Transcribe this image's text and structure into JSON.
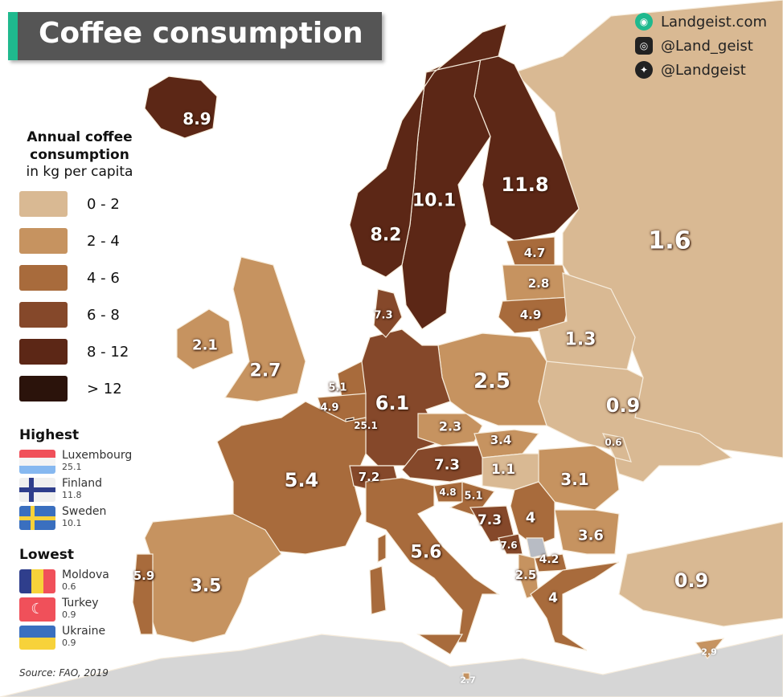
{
  "title": "Coffee consumption",
  "social": [
    {
      "icon": "globe-icon",
      "text": "Landgeist.com"
    },
    {
      "icon": "instagram-icon",
      "text": "@Land_geist"
    },
    {
      "icon": "twitter-icon",
      "text": "@Landgeist"
    }
  ],
  "legend": {
    "title_line1": "Annual coffee",
    "title_line2": "consumption",
    "subtitle": "in kg per capita",
    "bins": [
      {
        "label": "0  -  2",
        "color": "#d9b993"
      },
      {
        "label": "2  -  4",
        "color": "#c69360"
      },
      {
        "label": "4  -  6",
        "color": "#a86b3c"
      },
      {
        "label": "6  -  8",
        "color": "#85482a"
      },
      {
        "label": "8  -  12",
        "color": "#5c2716"
      },
      {
        "label": "> 12",
        "color": "#2b130b"
      }
    ]
  },
  "highest": {
    "heading": "Highest",
    "items": [
      {
        "country": "Luxembourg",
        "value": "25.1"
      },
      {
        "country": "Finland",
        "value": "11.8"
      },
      {
        "country": "Sweden",
        "value": "10.1"
      }
    ]
  },
  "lowest": {
    "heading": "Lowest",
    "items": [
      {
        "country": "Moldova",
        "value": "0.6"
      },
      {
        "country": "Turkey",
        "value": "0.9"
      },
      {
        "country": "Ukraine",
        "value": "0.9"
      }
    ]
  },
  "source": "Source: FAO, 2019",
  "countries": [
    {
      "id": "russia",
      "value": "1.6"
    },
    {
      "id": "finland",
      "value": "11.8"
    },
    {
      "id": "sweden",
      "value": "10.1"
    },
    {
      "id": "norway",
      "value": "8.2"
    },
    {
      "id": "iceland",
      "value": "8.9"
    },
    {
      "id": "estonia",
      "value": "4.7"
    },
    {
      "id": "latvia",
      "value": "2.8"
    },
    {
      "id": "lithuania",
      "value": "4.9"
    },
    {
      "id": "belarus",
      "value": "1.3"
    },
    {
      "id": "ukraine",
      "value": "0.9"
    },
    {
      "id": "moldova",
      "value": "0.6"
    },
    {
      "id": "poland",
      "value": "2.5"
    },
    {
      "id": "germany",
      "value": "6.1"
    },
    {
      "id": "denmark",
      "value": "7.3"
    },
    {
      "id": "netherlands",
      "value": "5.1"
    },
    {
      "id": "belgium",
      "value": "4.9"
    },
    {
      "id": "luxembourg",
      "value": "25.1"
    },
    {
      "id": "france",
      "value": "5.4"
    },
    {
      "id": "switzerland",
      "value": "7.2"
    },
    {
      "id": "austria",
      "value": "7.3"
    },
    {
      "id": "czechia",
      "value": "2.3"
    },
    {
      "id": "slovakia",
      "value": "3.4"
    },
    {
      "id": "hungary",
      "value": "1.1"
    },
    {
      "id": "romania",
      "value": "3.1"
    },
    {
      "id": "slovenia",
      "value": "4.8"
    },
    {
      "id": "croatia",
      "value": "5.1"
    },
    {
      "id": "bosnia",
      "value": "7.3"
    },
    {
      "id": "serbia",
      "value": "4"
    },
    {
      "id": "montenegro",
      "value": "7.6"
    },
    {
      "id": "north-macedonia",
      "value": "4.2"
    },
    {
      "id": "albania",
      "value": "2.5"
    },
    {
      "id": "bulgaria",
      "value": "3.6"
    },
    {
      "id": "greece",
      "value": "4"
    },
    {
      "id": "turkey",
      "value": "0.9"
    },
    {
      "id": "italy",
      "value": "5.6"
    },
    {
      "id": "spain",
      "value": "3.5"
    },
    {
      "id": "portugal",
      "value": "5.9"
    },
    {
      "id": "uk",
      "value": "2.7"
    },
    {
      "id": "ireland",
      "value": "2.1"
    },
    {
      "id": "cyprus",
      "value": "2.9"
    },
    {
      "id": "malta",
      "value": "2.7"
    }
  ]
}
